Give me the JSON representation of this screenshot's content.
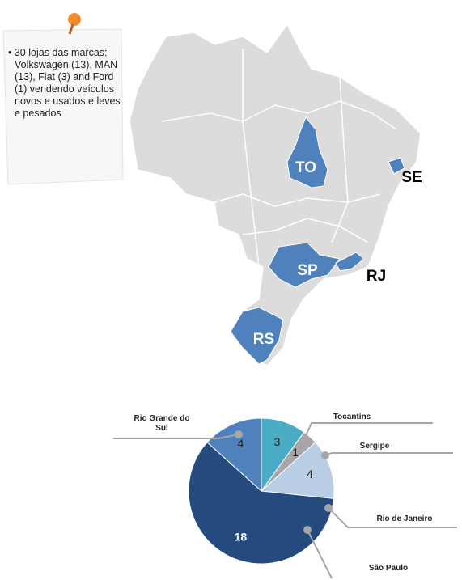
{
  "note": "30 lojas das marcas: Volkswagen (13), MAN (13), Fiat (3) and Ford (1) vendendo veículos novos e usados e leves e pesados",
  "map": {
    "labels": [
      "TO",
      "SE",
      "SP",
      "RJ",
      "RS"
    ]
  },
  "chart_data": {
    "type": "pie",
    "categories": [
      "Tocantins",
      "Sergipe",
      "Rio de Janeiro",
      "São Paulo",
      "Rio Grande do Sul"
    ],
    "values": [
      3,
      1,
      4,
      18,
      4
    ],
    "colors": [
      "#4bacc6",
      "#a6a6a6",
      "#b9cde5",
      "#254a7e",
      "#4f81bd"
    ]
  }
}
